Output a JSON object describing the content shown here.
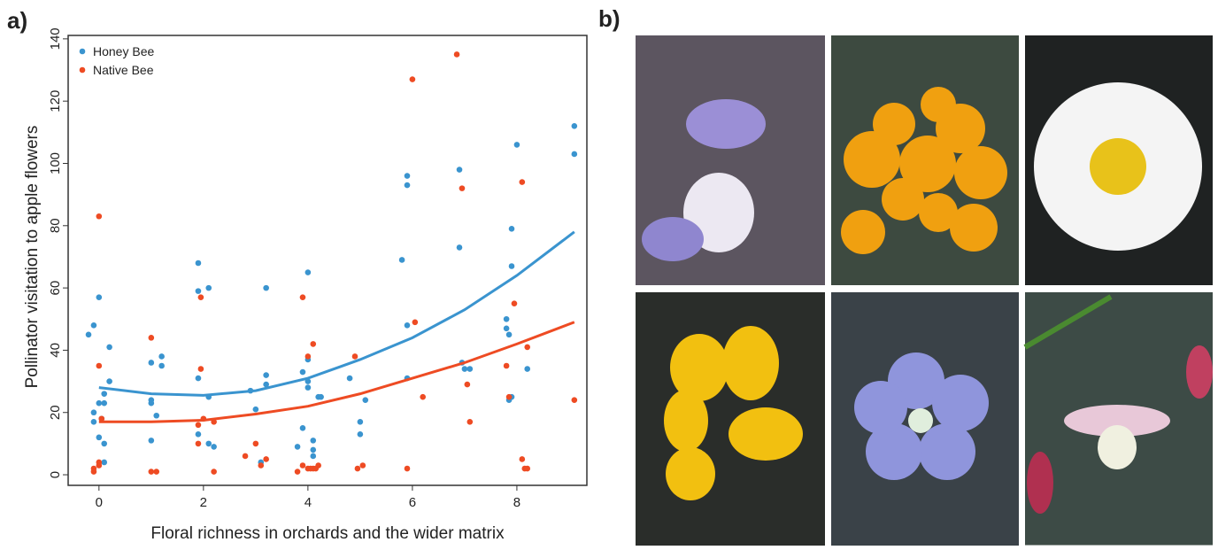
{
  "panel_labels": [
    "a)",
    "b)"
  ],
  "chart_data": {
    "type": "scatter",
    "x_label": "Floral richness in orchards and the wider matrix",
    "y_label": "Pollinator visitation to apple flowers",
    "xlim": [
      -0.59,
      9.34
    ],
    "ylim": [
      -3.4,
      141.1
    ],
    "xticks": [
      0,
      2,
      4,
      6,
      8
    ],
    "yticks": [
      0,
      20,
      40,
      60,
      80,
      100,
      120,
      140
    ],
    "legend": "upper left",
    "series": [
      {
        "name": "Honey Bee",
        "color": "#3a94cf",
        "x": [
          -0.2,
          -0.1,
          0,
          -0.1,
          -0.1,
          0,
          0.1,
          0.1,
          0.2,
          0.2,
          0,
          0.1,
          0.1,
          0.05,
          1,
          1,
          1,
          1,
          1.1,
          1.2,
          1.2,
          1.9,
          1.9,
          2.1,
          1.9,
          1.9,
          2.1,
          2.1,
          2.2,
          2.9,
          3,
          3.1,
          3.2,
          3.2,
          3.2,
          3.8,
          3.9,
          3.9,
          4,
          4,
          4,
          4,
          4.1,
          4.1,
          4.1,
          4.2,
          4.25,
          4.8,
          5,
          5,
          5.1,
          5.8,
          5.9,
          5.9,
          5.9,
          5.9,
          6.9,
          6.9,
          6.95,
          7,
          7.1,
          7.8,
          7.8,
          7.85,
          7.9,
          7.85,
          7.9,
          7.9,
          8,
          8.2,
          9.1,
          9.1
        ],
        "values": [
          45,
          48,
          57,
          20,
          17,
          23,
          23,
          26,
          41,
          30,
          12,
          10,
          4,
          18,
          36,
          24,
          23,
          11,
          19,
          38,
          35,
          68,
          59,
          60,
          31,
          13,
          25,
          10,
          9,
          27,
          21,
          4,
          60,
          32,
          29,
          9,
          33,
          15,
          65,
          37,
          30,
          28,
          11,
          8,
          6,
          25,
          25,
          31,
          17,
          13,
          24,
          69,
          96,
          93,
          48,
          31,
          98,
          73,
          36,
          34,
          34,
          50,
          47,
          45,
          25,
          24,
          79,
          67,
          106,
          34,
          112,
          103
        ],
        "fit_x": [
          0,
          1,
          2,
          3,
          4,
          5,
          6,
          7,
          8,
          9.1
        ],
        "fit_values": [
          28,
          26,
          25.5,
          27,
          31,
          37,
          44,
          53,
          64,
          78
        ]
      },
      {
        "name": "Native Bee",
        "color": "#ee4b23",
        "x": [
          -0.1,
          -0.1,
          0,
          0,
          0,
          0,
          0.05,
          1,
          1,
          1.1,
          1.95,
          1.95,
          1.9,
          1.9,
          2,
          2.2,
          2.2,
          2.8,
          3,
          3.1,
          3.2,
          3.9,
          4,
          4.1,
          3.8,
          3.9,
          4,
          4.05,
          4.1,
          4.2,
          4.15,
          4.9,
          4.95,
          5.05,
          6,
          6.05,
          6.2,
          5.9,
          6.85,
          6.95,
          7.05,
          7.1,
          7.8,
          7.85,
          7.95,
          8.1,
          8.15,
          8.2,
          8.1,
          8.2,
          9.1
        ],
        "values": [
          2,
          1,
          3,
          4,
          83,
          35,
          18,
          44,
          1,
          1,
          57,
          34,
          16,
          10,
          18,
          17,
          1,
          6,
          10,
          3,
          5,
          57,
          38,
          42,
          1,
          3,
          2,
          2,
          2,
          3,
          2,
          38,
          2,
          3,
          127,
          49,
          25,
          2,
          135,
          92,
          29,
          17,
          35,
          25,
          55,
          5,
          2,
          2,
          94,
          41,
          24
        ],
        "fit_x": [
          0,
          1,
          2,
          3,
          4,
          5,
          6,
          7,
          8,
          9.1
        ],
        "fit_values": [
          17,
          17,
          17.5,
          19.5,
          22,
          26,
          31,
          36,
          42,
          49
        ]
      }
    ]
  }
}
